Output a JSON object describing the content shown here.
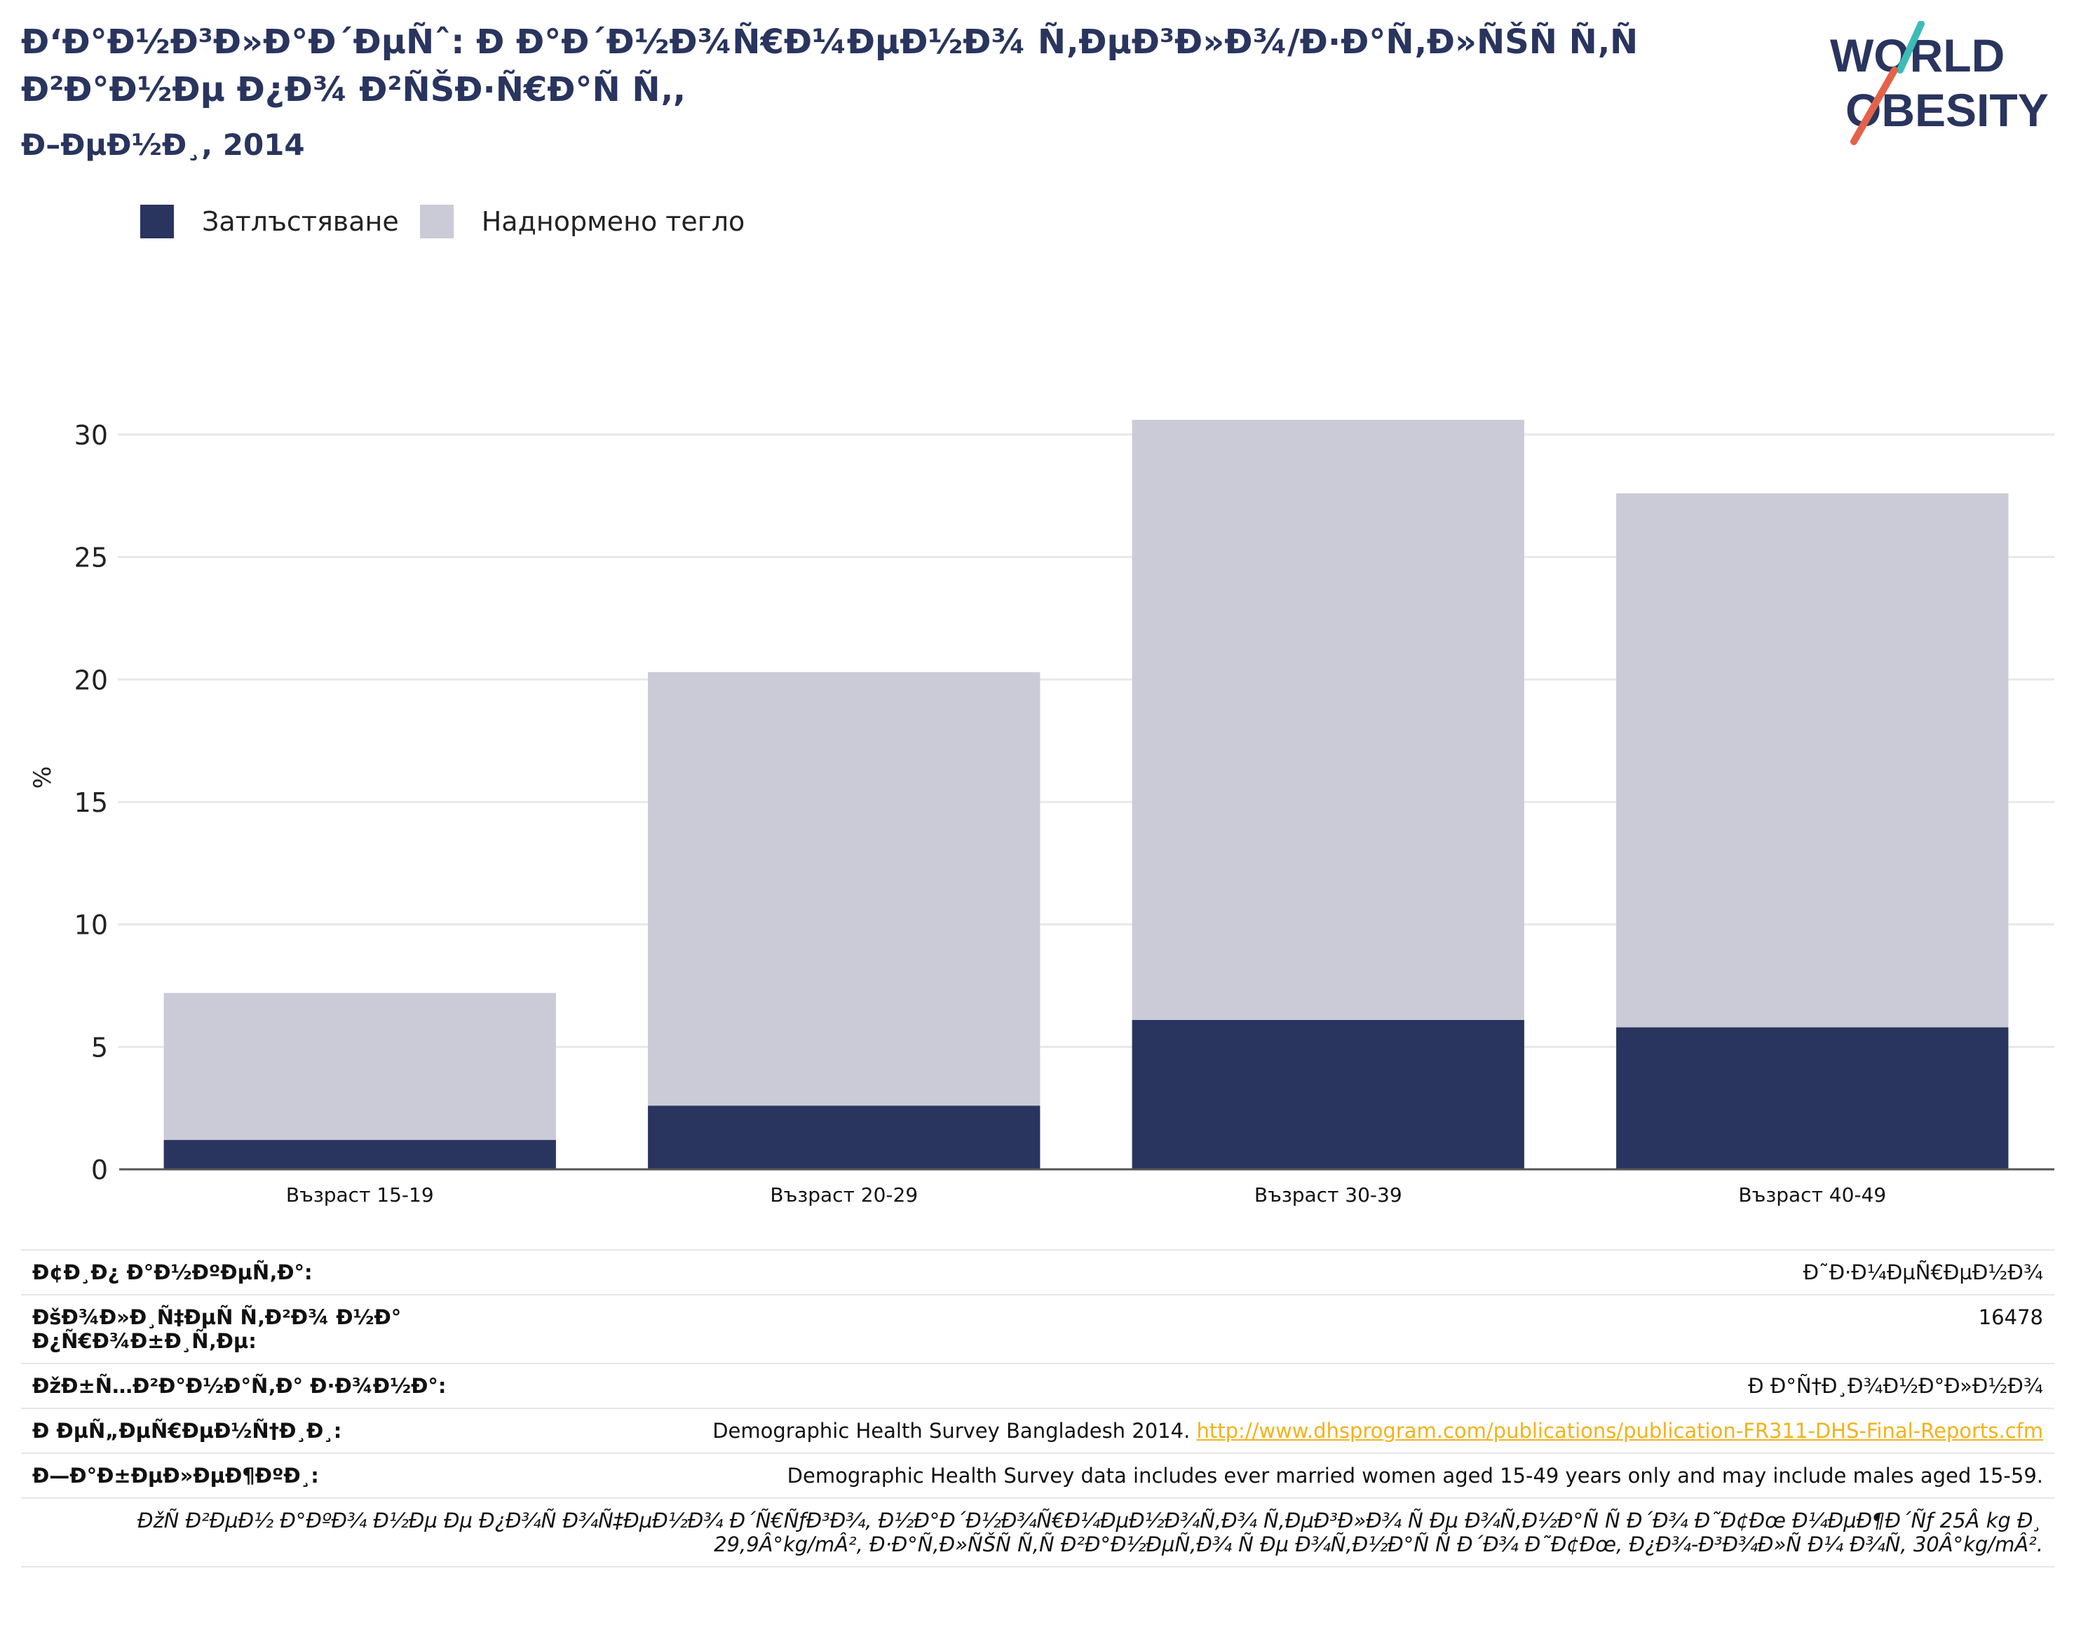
{
  "header": {
    "title": "Ð‘Ð°Ð½Ð³Ð»Ð°Ð´ÐµÑˆ: Ð Ð°Ð´Ð½Ð¾Ñ€Ð¼ÐµÐ½Ð¾ Ñ‚ÐµÐ³Ð»Ð¾/Ð·Ð°Ñ‚Ð»ÑŠÑ Ñ‚Ñ Ð²Ð°Ð½Ðµ Ð¿Ð¾ Ð²ÑŠÐ·Ñ€Ð°Ñ Ñ‚,",
    "subtitle": "Ð–ÐµÐ½Ð¸, 2014"
  },
  "logo": {
    "line1": "WORLD",
    "line2": "OBESITY"
  },
  "legend": {
    "items": [
      {
        "label": "Затлъстяване",
        "color": "#29355f"
      },
      {
        "label": "Наднормено тегло",
        "color": "#cacbd6"
      }
    ]
  },
  "chart_data": {
    "type": "bar",
    "stacked": true,
    "categories": [
      "Възраст 15-19",
      "Възраст 20-29",
      "Възраст 30-39",
      "Възраст 40-49"
    ],
    "series": [
      {
        "name": "Затлъстяване",
        "color": "#29355f",
        "values": [
          1.2,
          2.6,
          6.1,
          5.8
        ]
      },
      {
        "name": "Наднормено тегло",
        "color": "#cacbd6",
        "values": [
          6.0,
          17.7,
          24.5,
          21.8
        ]
      }
    ],
    "ylabel": "%",
    "ylim": [
      0,
      32
    ],
    "yticks": [
      0,
      5,
      10,
      15,
      20,
      25,
      30
    ],
    "grid": true
  },
  "info": {
    "rows": [
      {
        "key": "Ð¢Ð¸Ð¿ Ð°Ð½ÐºÐµÑ‚Ð°:",
        "value": "Ð˜Ð·Ð¼ÐµÑ€ÐµÐ½Ð¾"
      },
      {
        "key": "ÐšÐ¾Ð»Ð¸Ñ‡ÐµÑ Ñ‚Ð²Ð¾ Ð½Ð° Ð¿Ñ€Ð¾Ð±Ð¸Ñ‚Ðµ:",
        "value": "16478"
      },
      {
        "key": "ÐžÐ±Ñ…Ð²Ð°Ð½Ð°Ñ‚Ð° Ð·Ð¾Ð½Ð°:",
        "value": "Ð Ð°Ñ†Ð¸Ð¾Ð½Ð°Ð»Ð½Ð¾"
      },
      {
        "key": "Ð ÐµÑ„ÐµÑ€ÐµÐ½Ñ†Ð¸Ð¸:",
        "value": "Demographic Health Survey Bangladesh 2014.",
        "link": "http://www.dhsprogram.com/publications/publication-FR311-DHS-Final-Reports.cfm"
      },
      {
        "key": "Ð—Ð°Ð±ÐµÐ»ÐµÐ¶ÐºÐ¸:",
        "value": "Demographic Health Survey data includes ever married women aged 15-49 years only and may include males aged 15-59."
      }
    ],
    "footnote": "ÐžÑ Ð²ÐµÐ½ Ð°ÐºÐ¾ Ð½Ðµ Ðµ Ð¿Ð¾Ñ Ð¾Ñ‡ÐµÐ½Ð¾ Ð´Ñ€ÑƒÐ³Ð¾, Ð½Ð°Ð´Ð½Ð¾Ñ€Ð¼ÐµÐ½Ð¾Ñ‚Ð¾ Ñ‚ÐµÐ³Ð»Ð¾ Ñ Ðµ Ð¾Ñ‚Ð½Ð°Ñ Ñ  Ð´Ð¾ Ð˜Ð¢Ðœ Ð¼ÐµÐ¶Ð´Ñƒ 25Â kg Ð¸ 29,9Â°kg/mÂ², Ð·Ð°Ñ‚Ð»ÑŠÑ Ñ‚Ñ Ð²Ð°Ð½ÐµÑ‚Ð¾ Ñ Ðµ Ð¾Ñ‚Ð½Ð°Ñ Ñ  Ð´Ð¾ Ð˜Ð¢Ðœ, Ð¿Ð¾-Ð³Ð¾Ð»Ñ Ð¼ Ð¾Ñ‚ 30Â°kg/mÂ²."
  }
}
